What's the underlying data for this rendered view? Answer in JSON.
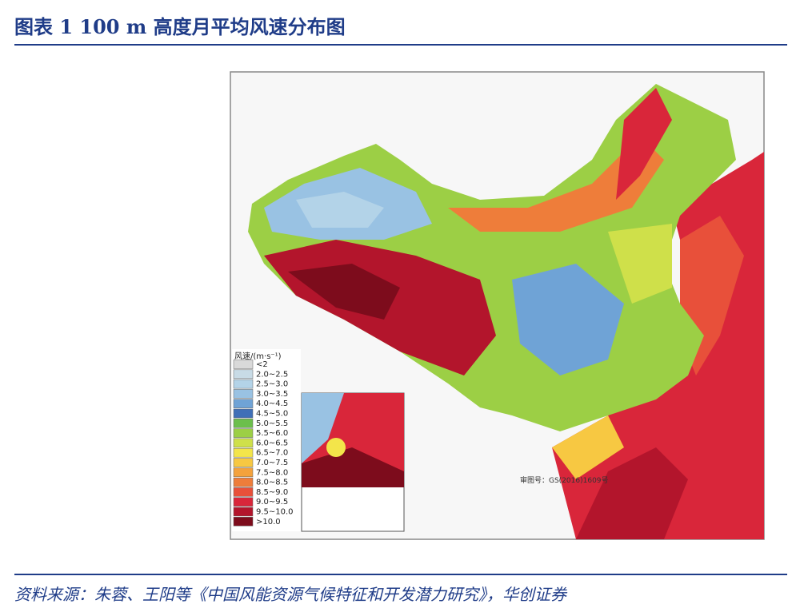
{
  "header": {
    "title": "图表 1   100 m 高度月平均风速分布图"
  },
  "map": {
    "legend_title": "风速/(m·s⁻¹)",
    "legend": [
      {
        "label": "<2",
        "color": "#d9d9d9"
      },
      {
        "label": "2.0~2.5",
        "color": "#c8dbe6"
      },
      {
        "label": "2.5~3.0",
        "color": "#b3d3e8"
      },
      {
        "label": "3.0~3.5",
        "color": "#99c2e3"
      },
      {
        "label": "4.0~4.5",
        "color": "#6fa3d6"
      },
      {
        "label": "4.5~5.0",
        "color": "#3f6fb7"
      },
      {
        "label": "5.0~5.5",
        "color": "#6cbf4c"
      },
      {
        "label": "5.5~6.0",
        "color": "#9ccf45"
      },
      {
        "label": "6.0~6.5",
        "color": "#cfe04a"
      },
      {
        "label": "6.5~7.0",
        "color": "#f3e54a"
      },
      {
        "label": "7.0~7.5",
        "color": "#f7c842"
      },
      {
        "label": "7.5~8.0",
        "color": "#f4a23c"
      },
      {
        "label": "8.0~8.5",
        "color": "#ee7d3a"
      },
      {
        "label": "8.5~9.0",
        "color": "#e8503a"
      },
      {
        "label": "9.0~9.5",
        "color": "#d9263a"
      },
      {
        "label": "9.5~10.0",
        "color": "#b3152c"
      },
      {
        "label": ">10.0",
        "color": "#7d0c1c"
      }
    ],
    "approval": "审图号：GS(2016)1609号"
  },
  "footer": {
    "source": "资料来源：朱蓉、王阳等《中国风能资源气候特征和开发潜力研究》，华创证券"
  }
}
